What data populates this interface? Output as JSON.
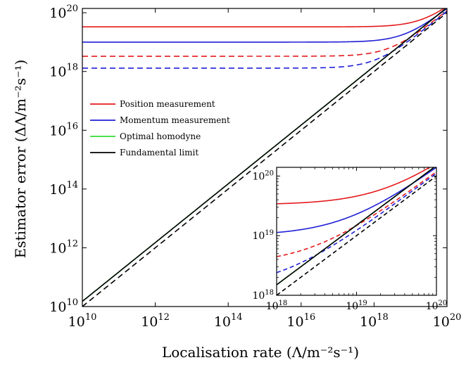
{
  "chart_data": [
    {
      "type": "line",
      "xlabel": "Localisation rate (Λ/m⁻²s⁻¹)",
      "ylabel": "Estimator error (ΔΛ/m⁻²s⁻¹)",
      "xscale": "log",
      "yscale": "log",
      "xlim": [
        10000000000.0,
        1e+20
      ],
      "ylim": [
        10000000000.0,
        1.4e+20
      ],
      "x_ticks": [
        {
          "value": 10000000000.0,
          "base": "10",
          "exp": "10"
        },
        {
          "value": 1000000000000.0,
          "base": "10",
          "exp": "12"
        },
        {
          "value": 100000000000000.0,
          "base": "10",
          "exp": "14"
        },
        {
          "value": 1e+16,
          "base": "10",
          "exp": "16"
        },
        {
          "value": 1e+18,
          "base": "10",
          "exp": "18"
        },
        {
          "value": 1e+20,
          "base": "10",
          "exp": "20"
        }
      ],
      "y_ticks": [
        {
          "value": 10000000000.0,
          "base": "10",
          "exp": "10"
        },
        {
          "value": 1000000000000.0,
          "base": "10",
          "exp": "12"
        },
        {
          "value": 100000000000000.0,
          "base": "10",
          "exp": "14"
        },
        {
          "value": 1e+16,
          "base": "10",
          "exp": "16"
        },
        {
          "value": 1e+18,
          "base": "10",
          "exp": "18"
        },
        {
          "value": 1e+20,
          "base": "10",
          "exp": "20"
        }
      ],
      "legend_position": "center-left",
      "legend": [
        {
          "label": "Position measurement",
          "color": "#e41a1c"
        },
        {
          "label": "Momentum measurement",
          "color": "#1f1fd6"
        },
        {
          "label": "Optimal homodyne",
          "color": "#33dd33"
        },
        {
          "label": "Fundamental limit",
          "color": "#000000"
        }
      ],
      "series": [
        {
          "name": "Position measurement",
          "color": "#e41a1c",
          "dash": "solid",
          "model": {
            "floor": 3.3e+19,
            "k": 1.3
          }
        },
        {
          "name": "Momentum measurement",
          "color": "#1f1fd6",
          "dash": "solid",
          "model": {
            "floor": 1e+19,
            "k": 1.3
          }
        },
        {
          "name": "",
          "color": "#e41a1c",
          "dash": "dashed",
          "model": {
            "floor": 3.3e+18,
            "k": 1.15
          }
        },
        {
          "name": "",
          "color": "#1f1fd6",
          "dash": "dashed",
          "model": {
            "floor": 1.3e+18,
            "k": 1.1
          }
        },
        {
          "name": "Optimal homodyne",
          "color": "#33dd33",
          "dash": "solid",
          "model": {
            "floor": 0,
            "k": 1.5
          }
        },
        {
          "name": "Fundamental limit",
          "color": "#000000",
          "dash": "solid",
          "model": {
            "floor": 0,
            "k": 1.5
          }
        },
        {
          "name": "",
          "color": "#000000",
          "dash": "dashed",
          "model": {
            "floor": 0,
            "k": 1.0
          }
        }
      ]
    },
    {
      "type": "line",
      "role": "inset",
      "xscale": "log",
      "yscale": "log",
      "xlim": [
        1e+18,
        1e+20
      ],
      "ylim": [
        1e+18,
        1.4e+20
      ],
      "x_ticks": [
        {
          "value": 1e+18,
          "base": "10",
          "exp": "18"
        },
        {
          "value": 1e+19,
          "base": "10",
          "exp": "19"
        },
        {
          "value": 1e+20,
          "base": "10",
          "exp": "20"
        }
      ],
      "y_ticks": [
        {
          "value": 1e+18,
          "base": "10",
          "exp": "18"
        },
        {
          "value": 1e+19,
          "base": "10",
          "exp": "19"
        },
        {
          "value": 1e+20,
          "base": "10",
          "exp": "20"
        }
      ]
    }
  ]
}
